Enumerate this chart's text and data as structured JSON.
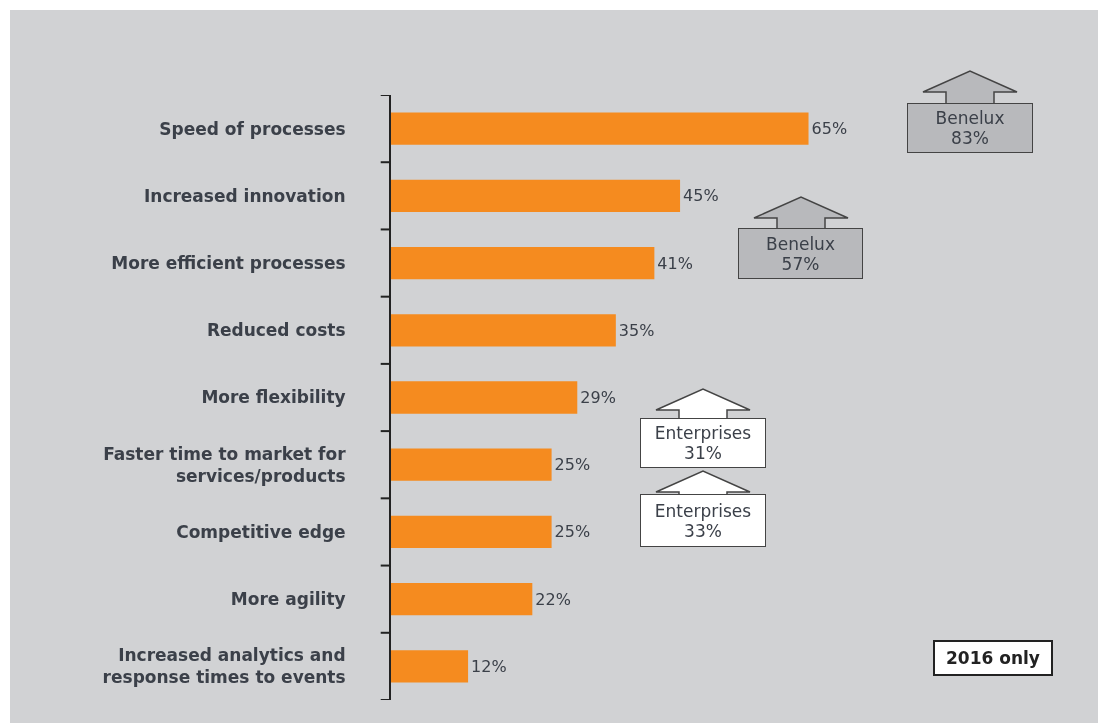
{
  "chart_data": {
    "type": "bar",
    "orientation": "horizontal",
    "categories": [
      "Speed of processes",
      "Increased innovation",
      "More efficient processes",
      "Reduced costs",
      "More flexibility",
      "Faster time to market for services/products",
      "Competitive edge",
      "More agility",
      "Increased analytics and response times to events"
    ],
    "values": [
      65,
      45,
      41,
      35,
      29,
      25,
      25,
      22,
      12
    ],
    "value_labels": [
      "65%",
      "45%",
      "41%",
      "35%",
      "29%",
      "25%",
      "25%",
      "22%",
      "12%"
    ],
    "color": "#f58b1f",
    "grid": false,
    "legend": false,
    "tick_labels": "y",
    "annotations": [
      "Benelux 83%",
      "Benelux 57%",
      "Enterprises 31%",
      "Enterprises 33%",
      "2016 only"
    ]
  }
}
